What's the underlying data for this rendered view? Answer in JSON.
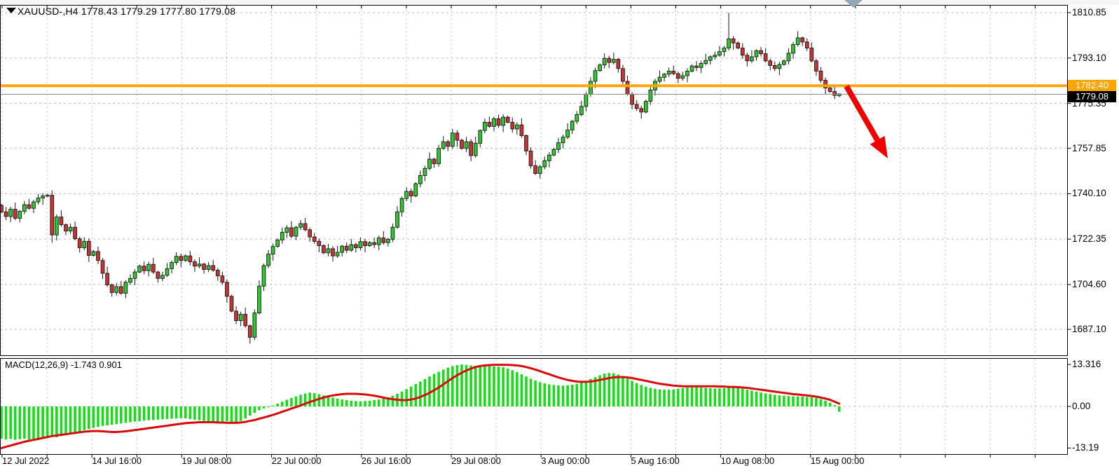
{
  "window": {
    "title": "XAUUSD-,H4 1778.43 1779.29 1777.80 1779.08"
  },
  "indicator": {
    "label": "MACD(12,26,9) -1.743 0.901"
  },
  "price_line_badge": {
    "text": "1782.40"
  },
  "current_price_badge": {
    "text": "1779.08"
  },
  "levels": {
    "orange_line_price": 1782.4,
    "current_price": 1779.08
  },
  "price_axis": {
    "tick_texts": [
      "1810.85",
      "1793.10",
      "1775.35",
      "1757.85",
      "1740.10",
      "1722.35",
      "1704.60",
      "1687.10"
    ],
    "tick_values": [
      1810.85,
      1793.1,
      1775.35,
      1757.85,
      1740.1,
      1722.35,
      1704.6,
      1687.1
    ]
  },
  "macd_axis": {
    "tick_texts": [
      "13.316",
      "0.00",
      "-13.19"
    ],
    "tick_values": [
      13.316,
      0,
      -13.19
    ]
  },
  "time_axis": {
    "labels": [
      "12 Jul 2022",
      "14 Jul 16:00",
      "19 Jul 08:00",
      "22 Jul 00:00",
      "26 Jul 16:00",
      "29 Jul 08:00",
      "3 Aug 00:00",
      "5 Aug 16:00",
      "10 Aug 08:00",
      "15 Aug 00:00"
    ]
  },
  "colors": {
    "bull": "#2FC82F",
    "bear": "#C93434",
    "wick": "#141414",
    "grid": "#bdbdbd",
    "macd_bar": "#19DC19",
    "macd_signal": "#D90A0A",
    "level_line": "#FFA400",
    "current_line": "#8c8c8c",
    "arrow": "#F20000",
    "shift_marker": "#95a5b4",
    "badge_orange_bg": "#FFA400",
    "badge_black_bg": "#000000",
    "badge_text": "#ffffff",
    "border": "#000000"
  },
  "annotation": {
    "type": "arrow",
    "color": "#F20000",
    "from": [
      1208,
      123
    ],
    "to": [
      1267,
      226
    ]
  },
  "chart_data": [
    {
      "type": "candlestick",
      "symbol": "XAUUSD-",
      "timeframe": "H4",
      "title": "XAUUSD-,H4",
      "last_candle_ohlc": [
        1778.43,
        1779.29,
        1777.8,
        1779.08
      ],
      "level_line": 1782.4,
      "ylim": [
        1676.9,
        1813.9
      ],
      "grid": "dashed",
      "closes": [
        1733.0,
        1731.2,
        1734.0,
        1730.5,
        1733.2,
        1735.8,
        1734.4,
        1736.9,
        1738.4,
        1739.2,
        1739.5,
        1724.0,
        1731.0,
        1728.0,
        1725.5,
        1727.0,
        1722.5,
        1719.0,
        1721.5,
        1716.0,
        1717.5,
        1714.0,
        1709.0,
        1704.5,
        1701.5,
        1703.8,
        1701.2,
        1705.5,
        1707.0,
        1709.5,
        1711.8,
        1710.0,
        1712.5,
        1709.5,
        1707.0,
        1708.2,
        1710.8,
        1713.2,
        1715.6,
        1714.0,
        1715.8,
        1713.5,
        1711.8,
        1712.6,
        1710.5,
        1712.0,
        1710.2,
        1708.0,
        1705.5,
        1700.0,
        1694.2,
        1690.5,
        1693.0,
        1688.5,
        1684.0,
        1693.5,
        1704.0,
        1712.0,
        1716.5,
        1719.5,
        1722.0,
        1725.0,
        1726.8,
        1723.5,
        1727.0,
        1728.4,
        1726.0,
        1723.2,
        1721.5,
        1719.8,
        1717.0,
        1718.6,
        1715.8,
        1717.2,
        1719.6,
        1718.0,
        1720.2,
        1719.0,
        1721.4,
        1719.8,
        1721.0,
        1720.2,
        1722.8,
        1721.0,
        1722.3,
        1727.0,
        1733.0,
        1738.2,
        1741.0,
        1739.2,
        1744.0,
        1747.2,
        1750.0,
        1753.6,
        1751.8,
        1757.8,
        1760.4,
        1758.6,
        1763.8,
        1761.0,
        1757.8,
        1760.4,
        1755.0,
        1759.8,
        1764.8,
        1768.0,
        1766.4,
        1769.4,
        1766.8,
        1770.0,
        1768.0,
        1765.4,
        1767.0,
        1762.8,
        1756.8,
        1751.0,
        1748.0,
        1750.6,
        1753.0,
        1755.2,
        1757.4,
        1760.0,
        1762.2,
        1765.0,
        1768.4,
        1771.0,
        1774.2,
        1779.0,
        1784.0,
        1788.2,
        1790.4,
        1793.0,
        1791.4,
        1792.6,
        1789.0,
        1784.0,
        1779.0,
        1775.0,
        1773.4,
        1772.0,
        1776.2,
        1780.6,
        1784.0,
        1785.6,
        1786.8,
        1788.0,
        1787.0,
        1785.2,
        1786.2,
        1788.0,
        1790.0,
        1789.4,
        1791.0,
        1792.2,
        1793.6,
        1794.2,
        1795.6,
        1797.0,
        1800.6,
        1799.0,
        1797.0,
        1794.2,
        1792.0,
        1793.6,
        1796.0,
        1794.8,
        1792.0,
        1790.2,
        1789.0,
        1790.6,
        1792.0,
        1795.0,
        1798.4,
        1801.0,
        1799.4,
        1797.0,
        1792.0,
        1788.0,
        1784.4,
        1781.4,
        1780.0,
        1778.5,
        1779.08
      ],
      "wick_sizes": [
        0.6,
        1.9,
        1.0,
        2.6,
        0.5,
        1.4,
        2.2,
        0.8,
        1.6,
        1.1
      ],
      "extremes": {
        "158": {
          "high": 1810.8
        },
        "54": {
          "low": 1681.5
        },
        "11": {
          "low": 1721.0
        }
      }
    },
    {
      "type": "bar",
      "name": "MACD histogram",
      "last_value": -1.743,
      "values": [
        -10.2,
        -10.5,
        -10.3,
        -10.6,
        -10.4,
        -10.2,
        -10.5,
        -10.7,
        -10.4,
        -10.1,
        -10.0,
        -9.6,
        -9.8,
        -9.4,
        -9.0,
        -8.7,
        -8.3,
        -7.9,
        -7.5,
        -7.2,
        -6.8,
        -6.5,
        -6.2,
        -6.0,
        -5.8,
        -5.6,
        -5.4,
        -5.2,
        -5.0,
        -4.8,
        -4.7,
        -4.5,
        -4.4,
        -4.3,
        -4.2,
        -4.1,
        -4.0,
        -3.9,
        -3.8,
        -3.7,
        -3.8,
        -4.0,
        -4.2,
        -4.4,
        -4.6,
        -4.8,
        -5.0,
        -5.2,
        -5.0,
        -4.7,
        -4.9,
        -5.1,
        -4.6,
        -3.8,
        -2.9,
        -2.0,
        -1.2,
        -0.6,
        -0.2,
        0.3,
        0.9,
        1.5,
        2.1,
        2.7,
        3.2,
        3.7,
        4.1,
        4.4,
        4.2,
        3.9,
        3.5,
        3.1,
        2.8,
        2.5,
        2.2,
        2.0,
        1.8,
        1.7,
        1.6,
        1.7,
        1.8,
        2.0,
        2.2,
        2.5,
        2.9,
        3.4,
        4.0,
        4.7,
        5.5,
        6.3,
        7.1,
        7.9,
        8.7,
        9.5,
        10.3,
        11.0,
        11.7,
        12.3,
        12.8,
        13.1,
        13.3,
        13.2,
        13.0,
        12.9,
        12.9,
        12.8,
        12.8,
        12.7,
        12.6,
        12.4,
        12.0,
        11.5,
        10.9,
        10.2,
        9.5,
        8.8,
        8.2,
        7.7,
        7.3,
        7.0,
        6.8,
        6.7,
        6.6,
        6.7,
        6.9,
        7.2,
        7.6,
        8.1,
        8.7,
        9.3,
        9.9,
        10.4,
        10.6,
        10.5,
        10.1,
        9.5,
        8.8,
        8.1,
        7.4,
        6.8,
        6.3,
        5.9,
        5.6,
        5.4,
        5.3,
        5.3,
        5.4,
        5.6,
        5.8,
        6.0,
        6.1,
        6.1,
        6.0,
        5.9,
        5.8,
        5.7,
        5.7,
        5.8,
        5.9,
        5.9,
        5.8,
        5.6,
        5.3,
        5.0,
        4.7,
        4.4,
        4.1,
        3.9,
        3.7,
        3.5,
        3.4,
        3.3,
        3.2,
        3.2,
        3.1,
        3.0,
        2.9,
        2.7,
        2.3,
        1.8,
        1.2,
        0.4,
        -1.7
      ]
    },
    {
      "type": "line",
      "name": "MACD signal",
      "last_value": 0.901,
      "values": [
        -13.2,
        -12.8,
        -12.4,
        -12.0,
        -11.6,
        -11.2,
        -10.9,
        -10.6,
        -10.3,
        -10.0,
        -9.7,
        -9.4,
        -9.2,
        -9.0,
        -8.8,
        -8.6,
        -8.4,
        -8.2,
        -8.0,
        -7.9,
        -7.8,
        -7.8,
        -7.9,
        -8.0,
        -8.1,
        -8.1,
        -8.0,
        -7.9,
        -7.7,
        -7.5,
        -7.3,
        -7.1,
        -6.9,
        -6.7,
        -6.5,
        -6.3,
        -6.1,
        -5.9,
        -5.7,
        -5.5,
        -5.3,
        -5.2,
        -5.1,
        -5.0,
        -5.0,
        -5.0,
        -5.0,
        -5.1,
        -5.1,
        -5.2,
        -5.2,
        -5.2,
        -5.1,
        -4.9,
        -4.6,
        -4.3,
        -3.9,
        -3.5,
        -3.1,
        -2.7,
        -2.2,
        -1.7,
        -1.2,
        -0.7,
        -0.2,
        0.3,
        0.9,
        1.4,
        1.9,
        2.4,
        2.8,
        3.2,
        3.5,
        3.7,
        3.9,
        4.0,
        4.0,
        4.0,
        3.9,
        3.8,
        3.6,
        3.4,
        3.1,
        2.8,
        2.5,
        2.3,
        2.1,
        2.0,
        2.0,
        2.2,
        2.5,
        3.0,
        3.6,
        4.3,
        5.1,
        6.0,
        7.0,
        8.0,
        9.0,
        9.9,
        10.7,
        11.4,
        12.0,
        12.5,
        12.8,
        13.0,
        13.1,
        13.2,
        13.2,
        13.2,
        13.2,
        13.1,
        13.0,
        12.8,
        12.5,
        12.1,
        11.7,
        11.2,
        10.7,
        10.2,
        9.7,
        9.2,
        8.8,
        8.4,
        8.1,
        7.9,
        7.8,
        7.8,
        7.9,
        8.1,
        8.4,
        8.7,
        9.0,
        9.2,
        9.3,
        9.3,
        9.2,
        9.0,
        8.7,
        8.4,
        8.1,
        7.8,
        7.5,
        7.2,
        7.0,
        6.8,
        6.6,
        6.5,
        6.4,
        6.4,
        6.4,
        6.4,
        6.4,
        6.4,
        6.4,
        6.4,
        6.3,
        6.3,
        6.2,
        6.2,
        6.1,
        6.0,
        5.9,
        5.7,
        5.5,
        5.3,
        5.1,
        4.9,
        4.7,
        4.5,
        4.3,
        4.1,
        3.9,
        3.8,
        3.6,
        3.5,
        3.3,
        3.1,
        2.8,
        2.5,
        2.1,
        1.5,
        0.9
      ]
    }
  ]
}
